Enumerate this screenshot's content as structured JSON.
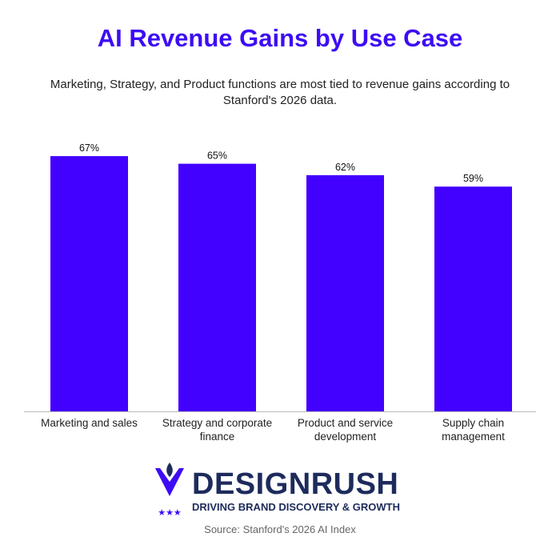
{
  "chart_data": {
    "type": "bar",
    "title": "AI Revenue Gains by Use Case",
    "subtitle": "Marketing, Strategy, and Product functions are most tied to revenue gains according to Stanford's 2026 data.",
    "categories": [
      "Marketing and sales",
      "Strategy and corporate finance",
      "Product and service development",
      "Supply chain management"
    ],
    "values": [
      67,
      65,
      62,
      59
    ],
    "value_labels": [
      "67%",
      "65%",
      "62%",
      "59%"
    ],
    "color": "#4200ff",
    "source": "Source: Stanford's 2026 AI Index"
  },
  "logo": {
    "name": "DESIGNRUSH",
    "tagline": "DRIVING BRAND DISCOVERY & GROWTH"
  }
}
